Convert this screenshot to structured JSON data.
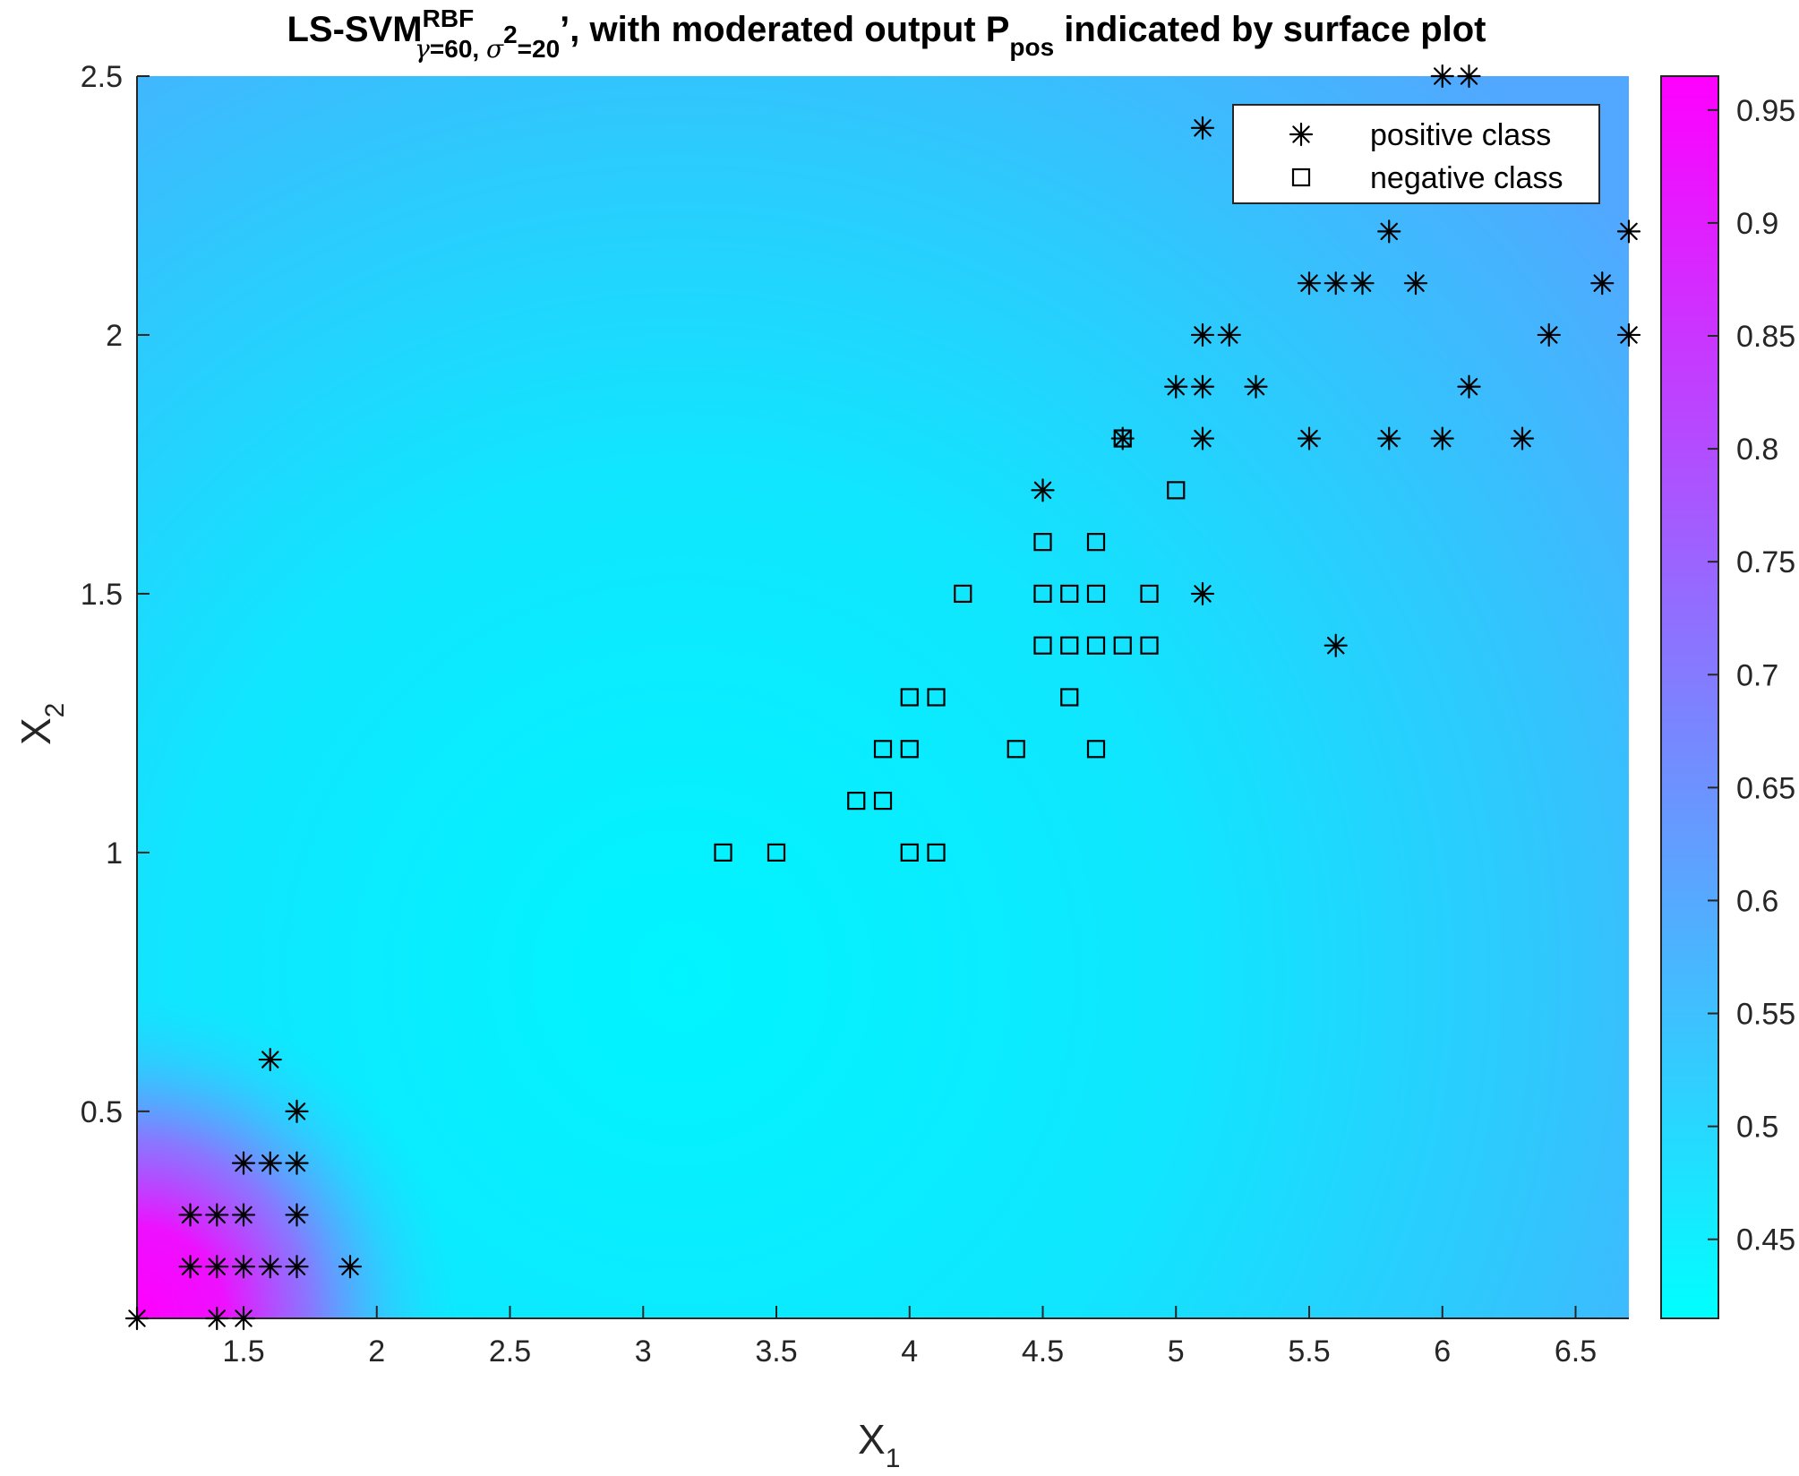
{
  "chart_data": {
    "type": "scatter",
    "title": {
      "prefix": "LS-SVM",
      "superscript": "RBF",
      "subscript_gamma": "γ",
      "subscript_gamma_value": "=60, ",
      "subscript_sigma": "σ",
      "subscript_sigma_power": "2",
      "subscript_sigma_value": "=20",
      "suffix_1": "’, with moderated output P",
      "suffix_sub": "pos",
      "suffix_2": " indicated by surface plot"
    },
    "xlabel": {
      "main": "X",
      "sub": "1"
    },
    "ylabel": {
      "main": "X",
      "sub": "2"
    },
    "xlim": [
      1.1,
      6.7
    ],
    "ylim": [
      0.1,
      2.5
    ],
    "xticks": [
      1.5,
      2,
      2.5,
      3,
      3.5,
      4,
      4.5,
      5,
      5.5,
      6,
      6.5
    ],
    "xtick_labels": [
      "1.5",
      "2",
      "2.5",
      "3",
      "3.5",
      "4",
      "4.5",
      "5",
      "5.5",
      "6",
      "6.5"
    ],
    "yticks": [
      0.5,
      1,
      1.5,
      2,
      2.5
    ],
    "ytick_labels": [
      "0.5",
      "1",
      "1.5",
      "2",
      "2.5"
    ],
    "colorbar": {
      "range": [
        0.415,
        0.965
      ],
      "ticks": [
        0.45,
        0.5,
        0.55,
        0.6,
        0.65,
        0.7,
        0.75,
        0.8,
        0.85,
        0.9,
        0.95
      ],
      "tick_labels": [
        "0.45",
        "0.5",
        "0.55",
        "0.6",
        "0.65",
        "0.7",
        "0.75",
        "0.8",
        "0.85",
        "0.9",
        "0.95"
      ],
      "colormap": [
        "#00ffff",
        "#ff00ff"
      ]
    },
    "legend": {
      "position": "top-right",
      "entries": [
        {
          "label": "positive class",
          "marker": "asterisk"
        },
        {
          "label": "negative class",
          "marker": "square"
        }
      ]
    },
    "series": [
      {
        "name": "positive class",
        "marker": "asterisk",
        "points": [
          [
            1.1,
            0.1
          ],
          [
            1.4,
            0.1
          ],
          [
            1.5,
            0.1
          ],
          [
            1.3,
            0.2
          ],
          [
            1.4,
            0.2
          ],
          [
            1.5,
            0.2
          ],
          [
            1.6,
            0.2
          ],
          [
            1.7,
            0.2
          ],
          [
            1.9,
            0.2
          ],
          [
            1.3,
            0.3
          ],
          [
            1.4,
            0.3
          ],
          [
            1.5,
            0.3
          ],
          [
            1.7,
            0.3
          ],
          [
            1.5,
            0.4
          ],
          [
            1.6,
            0.4
          ],
          [
            1.7,
            0.4
          ],
          [
            1.7,
            0.5
          ],
          [
            1.6,
            0.6
          ],
          [
            4.5,
            1.7
          ],
          [
            4.8,
            1.8
          ],
          [
            5.1,
            1.5
          ],
          [
            5.6,
            1.4
          ],
          [
            5.1,
            1.8
          ],
          [
            5.5,
            1.8
          ],
          [
            5.8,
            1.8
          ],
          [
            6.0,
            1.8
          ],
          [
            6.3,
            1.8
          ],
          [
            5.0,
            1.9
          ],
          [
            5.1,
            1.9
          ],
          [
            5.3,
            1.9
          ],
          [
            6.1,
            1.9
          ],
          [
            5.1,
            2.0
          ],
          [
            5.2,
            2.0
          ],
          [
            6.4,
            2.0
          ],
          [
            6.7,
            2.0
          ],
          [
            5.5,
            2.1
          ],
          [
            5.6,
            2.1
          ],
          [
            5.7,
            2.1
          ],
          [
            5.9,
            2.1
          ],
          [
            6.6,
            2.1
          ],
          [
            5.8,
            2.2
          ],
          [
            6.7,
            2.2
          ],
          [
            5.1,
            2.4
          ],
          [
            6.0,
            2.5
          ],
          [
            6.1,
            2.5
          ]
        ]
      },
      {
        "name": "negative class",
        "marker": "square",
        "points": [
          [
            3.3,
            1.0
          ],
          [
            3.5,
            1.0
          ],
          [
            4.0,
            1.0
          ],
          [
            4.1,
            1.0
          ],
          [
            3.8,
            1.1
          ],
          [
            3.9,
            1.1
          ],
          [
            3.9,
            1.2
          ],
          [
            4.0,
            1.2
          ],
          [
            4.4,
            1.2
          ],
          [
            4.7,
            1.2
          ],
          [
            4.0,
            1.3
          ],
          [
            4.1,
            1.3
          ],
          [
            4.6,
            1.3
          ],
          [
            4.5,
            1.4
          ],
          [
            4.6,
            1.4
          ],
          [
            4.7,
            1.4
          ],
          [
            4.8,
            1.4
          ],
          [
            4.9,
            1.4
          ],
          [
            4.2,
            1.5
          ],
          [
            4.5,
            1.5
          ],
          [
            4.6,
            1.5
          ],
          [
            4.7,
            1.5
          ],
          [
            4.9,
            1.5
          ],
          [
            4.5,
            1.6
          ],
          [
            4.7,
            1.6
          ],
          [
            5.0,
            1.7
          ],
          [
            4.8,
            1.8
          ]
        ]
      }
    ]
  }
}
